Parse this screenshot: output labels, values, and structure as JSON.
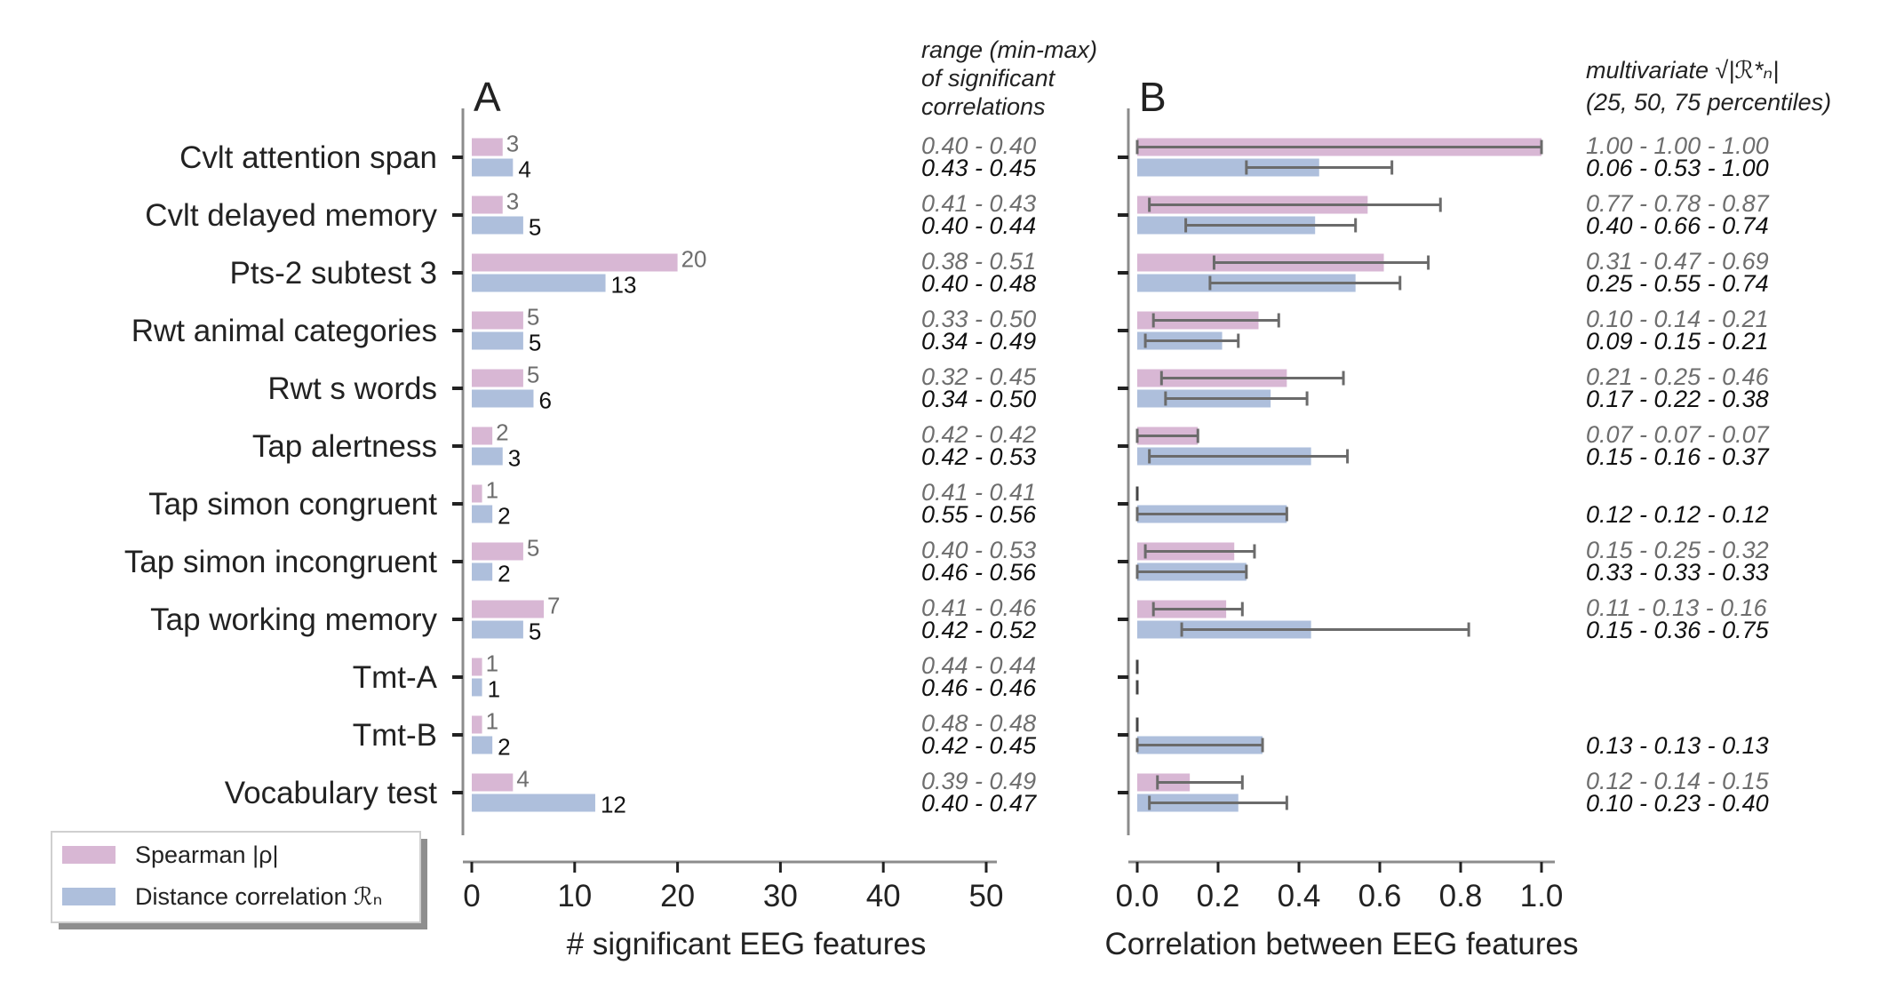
{
  "colors": {
    "spearman": "#d8b7d4",
    "distance": "#aebfdc",
    "errorbar": "#6b6b6b",
    "axis": "#8c8c8c",
    "grey_text": "#6e6e6e",
    "black_text": "#111111"
  },
  "legend": {
    "spearman": "Spearman |ρ|",
    "distance": "Distance correlation ℛₙ"
  },
  "chart_data": [
    {
      "type": "bar",
      "panel_label": "A",
      "xlabel": "# significant EEG features",
      "xlim": [
        0,
        50
      ],
      "xticks": [
        0,
        10,
        20,
        30,
        40,
        50
      ],
      "grid": false,
      "categories": [
        "Cvlt attention span",
        "Cvlt delayed memory",
        "Pts-2 subtest 3",
        "Rwt animal categories",
        "Rwt s words",
        "Tap alertness",
        "Tap simon congruent",
        "Tap simon incongruent",
        "Tap working memory",
        "Tmt-A",
        "Tmt-B",
        "Vocabulary test"
      ],
      "series": [
        {
          "name": "Spearman |ρ|",
          "values": [
            3,
            3,
            20,
            5,
            5,
            2,
            1,
            5,
            7,
            1,
            1,
            4
          ]
        },
        {
          "name": "Distance correlation ℛₙ",
          "values": [
            4,
            5,
            13,
            5,
            6,
            3,
            2,
            2,
            5,
            1,
            2,
            12
          ]
        }
      ],
      "range_header": [
        "range (min-max)",
        "of significant",
        "correlations"
      ],
      "range_spearman": [
        "0.40 - 0.40",
        "0.41 - 0.43",
        "0.38 - 0.51",
        "0.33 - 0.50",
        "0.32 - 0.45",
        "0.42 - 0.42",
        "0.41 - 0.41",
        "0.40 - 0.53",
        "0.41 - 0.46",
        "0.44 - 0.44",
        "0.48 - 0.48",
        "0.39 - 0.49"
      ],
      "range_distance": [
        "0.43 - 0.45",
        "0.40 - 0.44",
        "0.40 - 0.48",
        "0.34 - 0.49",
        "0.34 - 0.50",
        "0.42 - 0.53",
        "0.55 - 0.56",
        "0.46 - 0.56",
        "0.42 - 0.52",
        "0.46 - 0.46",
        "0.42 - 0.45",
        "0.40 - 0.47"
      ]
    },
    {
      "type": "bar",
      "panel_label": "B",
      "xlabel": "Correlation between EEG features",
      "xlim": [
        0,
        1
      ],
      "xticks": [
        "0.0",
        "0.2",
        "0.4",
        "0.6",
        "0.8",
        "1.0"
      ],
      "grid": false,
      "percentiles_header": [
        "multivariate",
        "(25, 50, 75 percentiles)"
      ],
      "series": [
        {
          "name": "Spearman |ρ|",
          "bars": [
            {
              "value": 1.0,
              "err": [
                0.0,
                1.0
              ]
            },
            {
              "value": 0.57,
              "err": [
                0.03,
                0.75
              ]
            },
            {
              "value": 0.61,
              "err": [
                0.19,
                0.72
              ]
            },
            {
              "value": 0.3,
              "err": [
                0.04,
                0.35
              ]
            },
            {
              "value": 0.37,
              "err": [
                0.06,
                0.51
              ]
            },
            {
              "value": 0.15,
              "err": [
                0.0,
                0.15
              ]
            },
            {
              "value": 0.0,
              "err": [
                0.0,
                0.0
              ]
            },
            {
              "value": 0.24,
              "err": [
                0.02,
                0.29
              ]
            },
            {
              "value": 0.22,
              "err": [
                0.04,
                0.26
              ]
            },
            {
              "value": 0.0,
              "err": [
                0.0,
                0.0
              ]
            },
            {
              "value": 0.0,
              "err": [
                0.0,
                0.0
              ]
            },
            {
              "value": 0.13,
              "err": [
                0.05,
                0.26
              ]
            }
          ],
          "percentiles": [
            "1.00 - 1.00 - 1.00",
            "0.77 - 0.78 - 0.87",
            "0.31 - 0.47 - 0.69",
            "0.10 - 0.14 - 0.21",
            "0.21 - 0.25 - 0.46",
            "0.07 - 0.07 - 0.07",
            "",
            "0.15 - 0.25 - 0.32",
            "0.11 - 0.13 - 0.16",
            "",
            "",
            "0.12 - 0.14 - 0.15"
          ]
        },
        {
          "name": "Distance correlation ℛₙ",
          "bars": [
            {
              "value": 0.45,
              "err": [
                0.27,
                0.63
              ]
            },
            {
              "value": 0.44,
              "err": [
                0.12,
                0.54
              ]
            },
            {
              "value": 0.54,
              "err": [
                0.18,
                0.65
              ]
            },
            {
              "value": 0.21,
              "err": [
                0.02,
                0.25
              ]
            },
            {
              "value": 0.33,
              "err": [
                0.07,
                0.42
              ]
            },
            {
              "value": 0.43,
              "err": [
                0.03,
                0.52
              ]
            },
            {
              "value": 0.37,
              "err": [
                0.0,
                0.37
              ]
            },
            {
              "value": 0.27,
              "err": [
                0.0,
                0.27
              ]
            },
            {
              "value": 0.43,
              "err": [
                0.11,
                0.82
              ]
            },
            {
              "value": 0.0,
              "err": [
                0.0,
                0.0
              ]
            },
            {
              "value": 0.31,
              "err": [
                0.0,
                0.31
              ]
            },
            {
              "value": 0.25,
              "err": [
                0.03,
                0.37
              ]
            }
          ],
          "percentiles": [
            "0.06 - 0.53 - 1.00",
            "0.40 - 0.66 - 0.74",
            "0.25 - 0.55 - 0.74",
            "0.09 - 0.15 - 0.21",
            "0.17 - 0.22 - 0.38",
            "0.15 - 0.16 - 0.37",
            "0.12 - 0.12 - 0.12",
            "0.33 - 0.33 - 0.33",
            "0.15 - 0.36 - 0.75",
            "",
            "0.13 - 0.13 - 0.13",
            "0.10 - 0.23 - 0.40"
          ]
        }
      ]
    }
  ]
}
